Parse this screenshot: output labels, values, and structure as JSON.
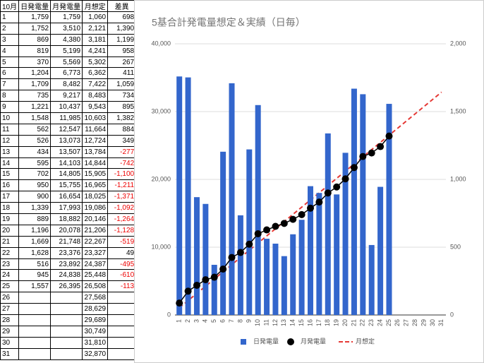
{
  "table": {
    "header": [
      "10月",
      "日発電量",
      "月発電量",
      "月想定",
      "差異"
    ],
    "rows": [
      {
        "day": "1",
        "daily": "1,759",
        "monthly": "1,759",
        "plan": "1,060",
        "diff": "698"
      },
      {
        "day": "2",
        "daily": "1,752",
        "monthly": "3,510",
        "plan": "2,121",
        "diff": "1,390"
      },
      {
        "day": "3",
        "daily": "869",
        "monthly": "4,380",
        "plan": "3,181",
        "diff": "1,199"
      },
      {
        "day": "4",
        "daily": "819",
        "monthly": "5,199",
        "plan": "4,241",
        "diff": "958"
      },
      {
        "day": "5",
        "daily": "370",
        "monthly": "5,569",
        "plan": "5,302",
        "diff": "267"
      },
      {
        "day": "6",
        "daily": "1,204",
        "monthly": "6,773",
        "plan": "6,362",
        "diff": "411"
      },
      {
        "day": "7",
        "daily": "1,709",
        "monthly": "8,482",
        "plan": "7,422",
        "diff": "1,059"
      },
      {
        "day": "8",
        "daily": "735",
        "monthly": "9,217",
        "plan": "8,483",
        "diff": "734"
      },
      {
        "day": "9",
        "daily": "1,221",
        "monthly": "10,437",
        "plan": "9,543",
        "diff": "895"
      },
      {
        "day": "10",
        "daily": "1,548",
        "monthly": "11,985",
        "plan": "10,603",
        "diff": "1,382"
      },
      {
        "day": "11",
        "daily": "562",
        "monthly": "12,547",
        "plan": "11,664",
        "diff": "884"
      },
      {
        "day": "12",
        "daily": "526",
        "monthly": "13,073",
        "plan": "12,724",
        "diff": "349"
      },
      {
        "day": "13",
        "daily": "434",
        "monthly": "13,507",
        "plan": "13,784",
        "diff": "-277"
      },
      {
        "day": "14",
        "daily": "595",
        "monthly": "14,103",
        "plan": "14,844",
        "diff": "-742"
      },
      {
        "day": "15",
        "daily": "702",
        "monthly": "14,805",
        "plan": "15,905",
        "diff": "-1,100"
      },
      {
        "day": "16",
        "daily": "950",
        "monthly": "15,755",
        "plan": "16,965",
        "diff": "-1,211"
      },
      {
        "day": "17",
        "daily": "900",
        "monthly": "16,654",
        "plan": "18,025",
        "diff": "-1,371"
      },
      {
        "day": "18",
        "daily": "1,339",
        "monthly": "17,993",
        "plan": "19,086",
        "diff": "-1,092"
      },
      {
        "day": "19",
        "daily": "889",
        "monthly": "18,882",
        "plan": "20,146",
        "diff": "-1,264"
      },
      {
        "day": "20",
        "daily": "1,196",
        "monthly": "20,078",
        "plan": "21,206",
        "diff": "-1,128"
      },
      {
        "day": "21",
        "daily": "1,669",
        "monthly": "21,748",
        "plan": "22,267",
        "diff": "-519"
      },
      {
        "day": "22",
        "daily": "1,628",
        "monthly": "23,376",
        "plan": "23,327",
        "diff": "49"
      },
      {
        "day": "23",
        "daily": "516",
        "monthly": "23,892",
        "plan": "24,387",
        "diff": "-495"
      },
      {
        "day": "24",
        "daily": "945",
        "monthly": "24,838",
        "plan": "25,448",
        "diff": "-610"
      },
      {
        "day": "25",
        "daily": "1,557",
        "monthly": "26,395",
        "plan": "26,508",
        "diff": "-113"
      },
      {
        "day": "26",
        "plan": "27,568"
      },
      {
        "day": "27",
        "plan": "28,629"
      },
      {
        "day": "28",
        "plan": "29,689"
      },
      {
        "day": "29",
        "plan": "30,749"
      },
      {
        "day": "30",
        "plan": "31,810"
      },
      {
        "day": "31",
        "plan": "32,870"
      }
    ]
  },
  "chart_data": {
    "type": "combo",
    "title": "5基合計発電量想定＆実績（日毎）",
    "categories": [
      "1",
      "2",
      "3",
      "4",
      "5",
      "6",
      "7",
      "8",
      "9",
      "10",
      "11",
      "12",
      "13",
      "14",
      "15",
      "16",
      "17",
      "18",
      "19",
      "20",
      "21",
      "22",
      "23",
      "24",
      "25",
      "26",
      "27",
      "28",
      "29",
      "30",
      "31"
    ],
    "ylim": [
      0,
      40000
    ],
    "yticks": [
      0,
      {
        "value": 10000,
        "label": "10,000"
      },
      {
        "value": 20000,
        "label": "20,000"
      },
      {
        "value": 30000,
        "label": "30,000"
      },
      {
        "value": 40000,
        "label": "40,000"
      }
    ],
    "y2lim": [
      0,
      2000
    ],
    "y2ticks": [
      0,
      500,
      {
        "value": 1000,
        "label": "1,000"
      },
      {
        "value": 1500,
        "label": "1,500"
      },
      {
        "value": 2000,
        "label": "2,000"
      }
    ],
    "grid": true,
    "series": [
      {
        "name": "日発電量",
        "type": "bar",
        "axis": "y2",
        "color": "#3366cc",
        "values": [
          1759,
          1752,
          869,
          819,
          370,
          1204,
          1709,
          735,
          1221,
          1548,
          562,
          526,
          434,
          595,
          702,
          950,
          900,
          1339,
          889,
          1196,
          1669,
          1628,
          516,
          945,
          1557,
          null,
          null,
          null,
          null,
          null,
          null
        ]
      },
      {
        "name": "月発電量",
        "type": "line",
        "color": "#000000",
        "values": [
          1759,
          3510,
          4380,
          5199,
          5569,
          6773,
          8482,
          9217,
          10437,
          11985,
          12547,
          13073,
          13507,
          14103,
          14805,
          15755,
          16654,
          17993,
          18882,
          20078,
          21748,
          23376,
          23892,
          24838,
          26395,
          null,
          null,
          null,
          null,
          null,
          null
        ]
      },
      {
        "name": "月想定",
        "type": "dashed",
        "color": "#e53935",
        "values": [
          1060,
          2121,
          3181,
          4241,
          5302,
          6362,
          7422,
          8483,
          9543,
          10603,
          11664,
          12724,
          13784,
          14844,
          15905,
          16965,
          18025,
          19086,
          20146,
          21206,
          22267,
          23327,
          24387,
          25448,
          26508,
          27568,
          28629,
          29689,
          30749,
          31810,
          32870
        ]
      }
    ]
  }
}
